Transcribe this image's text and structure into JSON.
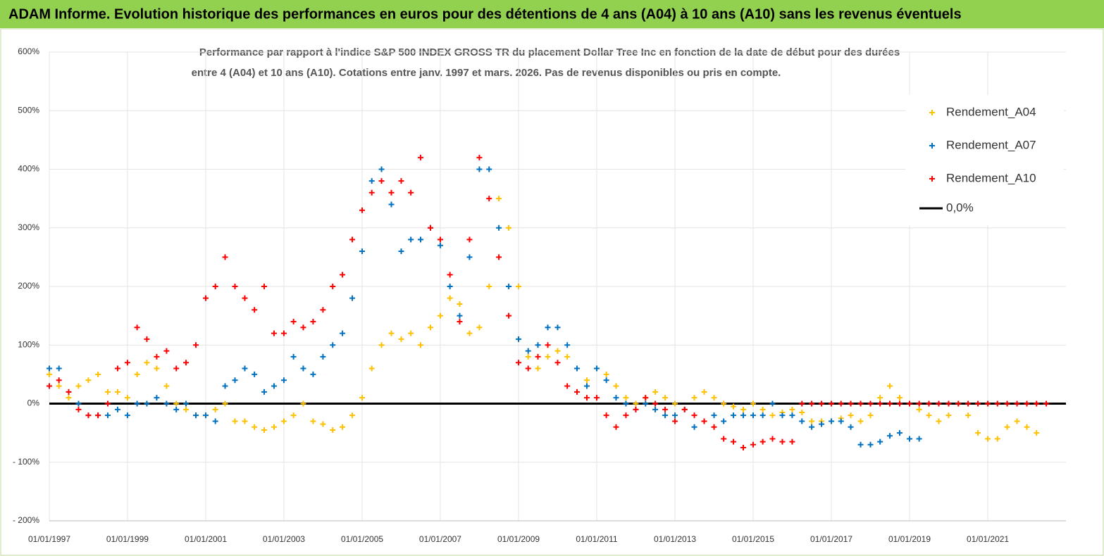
{
  "chart_data": {
    "type": "scatter",
    "title": "ADAM Informe. Evolution historique des performances en euros pour des détentions de 4 ans (A04) à 10 ans (A10) sans les revenus éventuels",
    "subtitle": [
      "Performance par rapport à l'indice S&P 500 INDEX GROSS TR  du placement Dollar Tree Inc en fonction de la date de début pour des durées",
      "entre 4 (A04) et 10 ans (A10). Cotations entre janv. 1997 et mars. 2026. Pas de revenus disponibles ou pris en compte."
    ],
    "x": [
      "1997-01-01",
      "1997-04-01",
      "1997-07-01",
      "1997-10-01",
      "1998-01-01",
      "1998-04-01",
      "1998-07-01",
      "1998-10-01",
      "1999-01-01",
      "1999-04-01",
      "1999-07-01",
      "1999-10-01",
      "2000-01-01",
      "2000-04-01",
      "2000-07-01",
      "2000-10-01",
      "2001-01-01",
      "2001-04-01",
      "2001-07-01",
      "2001-10-01",
      "2002-01-01",
      "2002-04-01",
      "2002-07-01",
      "2002-10-01",
      "2003-01-01",
      "2003-04-01",
      "2003-07-01",
      "2003-10-01",
      "2004-01-01",
      "2004-04-01",
      "2004-07-01",
      "2004-10-01",
      "2005-01-01",
      "2005-04-01",
      "2005-07-01",
      "2005-10-01",
      "2006-01-01",
      "2006-04-01",
      "2006-07-01",
      "2006-10-01",
      "2007-01-01",
      "2007-04-01",
      "2007-07-01",
      "2007-10-01",
      "2008-01-01",
      "2008-04-01",
      "2008-07-01",
      "2008-10-01",
      "2009-01-01",
      "2009-04-01",
      "2009-07-01",
      "2009-10-01",
      "2010-01-01",
      "2010-04-01",
      "2010-07-01",
      "2010-10-01",
      "2011-01-01",
      "2011-04-01",
      "2011-07-01",
      "2011-10-01",
      "2012-01-01",
      "2012-04-01",
      "2012-07-01",
      "2012-10-01",
      "2013-01-01",
      "2013-04-01",
      "2013-07-01",
      "2013-10-01",
      "2014-01-01",
      "2014-04-01",
      "2014-07-01",
      "2014-10-01",
      "2015-01-01",
      "2015-04-01",
      "2015-07-01",
      "2015-10-01",
      "2016-01-01",
      "2016-04-01",
      "2016-07-01",
      "2016-10-01",
      "2017-01-01",
      "2017-04-01",
      "2017-07-01",
      "2017-10-01",
      "2018-01-01",
      "2018-04-01",
      "2018-07-01",
      "2018-10-01",
      "2019-01-01",
      "2019-04-01",
      "2019-07-01",
      "2019-10-01",
      "2020-01-01",
      "2020-04-01",
      "2020-07-01",
      "2020-10-01",
      "2021-01-01",
      "2021-04-01",
      "2021-07-01",
      "2021-10-01",
      "2022-01-01",
      "2022-04-01",
      "2022-07-01",
      "2022-10-01",
      "2023-01-01"
    ],
    "series": [
      {
        "name": "Rendement_A04",
        "color": "#ffc000",
        "values": [
          50,
          30,
          10,
          30,
          40,
          50,
          20,
          20,
          10,
          50,
          70,
          60,
          30,
          0,
          -10,
          -20,
          -20,
          -10,
          0,
          -30,
          -30,
          -40,
          -45,
          -40,
          -30,
          -20,
          0,
          -30,
          -35,
          -45,
          -40,
          -20,
          10,
          60,
          100,
          120,
          110,
          120,
          100,
          130,
          150,
          180,
          170,
          120,
          130,
          200,
          350,
          300,
          200,
          80,
          60,
          80,
          90,
          80,
          60,
          40,
          60,
          50,
          30,
          10,
          0,
          10,
          20,
          10,
          0,
          -10,
          10,
          20,
          10,
          0,
          -5,
          -10,
          0,
          -10,
          -20,
          -15,
          -10,
          -15,
          -30,
          -30,
          -30,
          -25,
          -20,
          -30,
          -20,
          10,
          30,
          10,
          0,
          -10,
          -20,
          -30,
          -20,
          0,
          -20,
          -50,
          -60,
          -60,
          -40,
          -30,
          -40,
          -50,
          null,
          null,
          null
        ]
      },
      {
        "name": "Rendement_A07",
        "color": "#0070c0",
        "values": [
          60,
          60,
          20,
          0,
          -20,
          -20,
          -20,
          -10,
          -20,
          0,
          0,
          10,
          0,
          -10,
          0,
          -20,
          -20,
          -30,
          30,
          40,
          60,
          50,
          20,
          30,
          40,
          80,
          60,
          50,
          80,
          100,
          120,
          180,
          260,
          380,
          400,
          340,
          260,
          280,
          280,
          300,
          270,
          200,
          150,
          250,
          400,
          400,
          300,
          200,
          110,
          90,
          100,
          130,
          130,
          100,
          60,
          30,
          60,
          40,
          10,
          0,
          -10,
          0,
          -10,
          -20,
          -20,
          -10,
          -40,
          -30,
          -20,
          -30,
          -20,
          -20,
          -20,
          -20,
          0,
          -20,
          -20,
          -30,
          -40,
          -35,
          -30,
          -30,
          -40,
          -70,
          -70,
          -65,
          -55,
          -50,
          -60,
          -60,
          null,
          null,
          null,
          null,
          null,
          null,
          null,
          null,
          null,
          null,
          null,
          null,
          null,
          null,
          null
        ]
      },
      {
        "name": "Rendement_A10",
        "color": "#ff0000",
        "values": [
          30,
          40,
          20,
          -10,
          -20,
          -20,
          0,
          60,
          70,
          130,
          110,
          80,
          90,
          60,
          70,
          100,
          180,
          200,
          250,
          200,
          180,
          160,
          200,
          120,
          120,
          140,
          130,
          140,
          160,
          200,
          220,
          280,
          330,
          360,
          380,
          360,
          380,
          360,
          420,
          300,
          280,
          220,
          140,
          280,
          420,
          350,
          250,
          150,
          70,
          60,
          80,
          100,
          70,
          30,
          20,
          10,
          10,
          -20,
          -40,
          -20,
          -10,
          10,
          0,
          -10,
          -30,
          -10,
          -20,
          -30,
          -40,
          -60,
          -65,
          -75,
          -70,
          -65,
          -60,
          -65,
          -65,
          0,
          0,
          0,
          0,
          0,
          0,
          0,
          0,
          0,
          0,
          0,
          0,
          0,
          0,
          0,
          0,
          0,
          0,
          0,
          0,
          0,
          0,
          0,
          0,
          0,
          0
        ]
      }
    ],
    "reference_line": {
      "name": "0,0%",
      "value": 0,
      "color": "#000000"
    },
    "xlim": [
      "1997-01-01",
      "2023-01-01"
    ],
    "xticks": [
      {
        "value": "1997-01-01",
        "label": "01/01/1997"
      },
      {
        "value": "1999-01-01",
        "label": "01/01/1999"
      },
      {
        "value": "2001-01-01",
        "label": "01/01/2001"
      },
      {
        "value": "2003-01-01",
        "label": "01/01/2003"
      },
      {
        "value": "2005-01-01",
        "label": "01/01/2005"
      },
      {
        "value": "2007-01-01",
        "label": "01/01/2007"
      },
      {
        "value": "2009-01-01",
        "label": "01/01/2009"
      },
      {
        "value": "2011-01-01",
        "label": "01/01/2011"
      },
      {
        "value": "2013-01-01",
        "label": "01/01/2013"
      },
      {
        "value": "2015-01-01",
        "label": "01/01/2015"
      },
      {
        "value": "2017-01-01",
        "label": "01/01/2017"
      },
      {
        "value": "2019-01-01",
        "label": "01/01/2019"
      },
      {
        "value": "2021-01-01",
        "label": "01/01/2021"
      }
    ],
    "ylim": [
      -200,
      600
    ],
    "yticks": [
      {
        "value": -200,
        "label": "- 200%"
      },
      {
        "value": -100,
        "label": "- 100%"
      },
      {
        "value": 0,
        "label": "0%"
      },
      {
        "value": 100,
        "label": "100%"
      },
      {
        "value": 200,
        "label": "200%"
      },
      {
        "value": 300,
        "label": "300%"
      },
      {
        "value": 400,
        "label": "400%"
      },
      {
        "value": 500,
        "label": "500%"
      },
      {
        "value": 600,
        "label": "600%"
      }
    ],
    "grid": true,
    "legend": "upper right"
  }
}
